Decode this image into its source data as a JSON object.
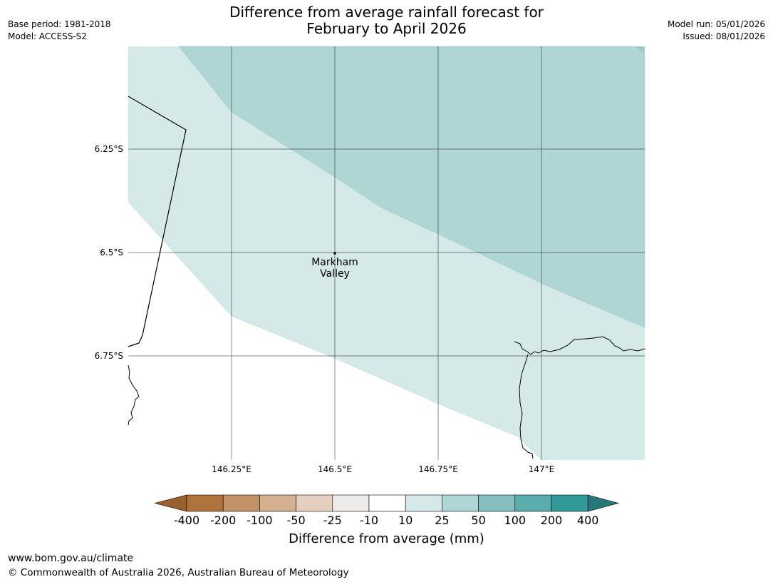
{
  "header": {
    "title_line1": "Difference from average rainfall forecast for",
    "title_line2": "February to April 2026",
    "base_period": "Base period: 1981-2018",
    "model": "Model: ACCESS-S2",
    "model_run": "Model run: 05/01/2026",
    "issued": "Issued: 08/01/2026"
  },
  "map": {
    "lat_labels": [
      "6.25°S",
      "6.5°S",
      "6.75°S"
    ],
    "lon_labels": [
      "146.25°E",
      "146.5°E",
      "146.75°E",
      "147°E"
    ],
    "place": {
      "name_line1": "Markham",
      "name_line2": "Valley"
    },
    "zone_colors": {
      "10_to_25": "#d4e9e8",
      "25_to_50": "#afd5d5"
    }
  },
  "legend": {
    "title": "Difference from average (mm)",
    "tick_labels": [
      "-400",
      "-200",
      "-100",
      "-50",
      "-25",
      "-10",
      "10",
      "25",
      "50",
      "100",
      "200",
      "400"
    ],
    "colors": [
      "#9a6130",
      "#ae743c",
      "#c29268",
      "#d3b190",
      "#e5d0bd",
      "#efebe8",
      "#ffffff",
      "#d6e9e8",
      "#b0d5d5",
      "#88bfbe",
      "#5bacad",
      "#319998",
      "#257877"
    ]
  },
  "footer": {
    "url": "www.bom.gov.au/climate",
    "copyright": "© Commonwealth of Australia 2026, Australian Bureau of Meteorology"
  }
}
